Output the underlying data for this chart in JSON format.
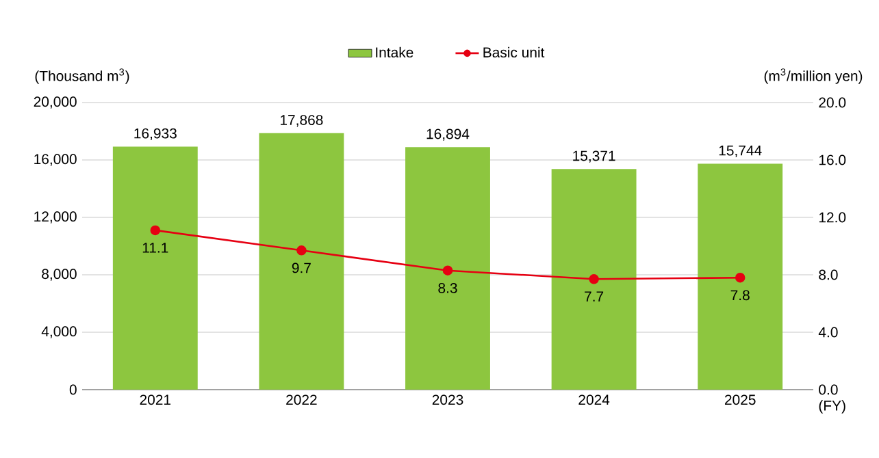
{
  "chart_data": {
    "type": "bar",
    "categories": [
      "2021",
      "2022",
      "2023",
      "2024",
      "2025"
    ],
    "ylabel": "(Thousand m$^{3}$)",
    "y2label": "(m$^{3}$/million yen)",
    "xlabel": "(FY)",
    "ylim": [
      0,
      20000
    ],
    "yticks": [
      {
        "value": 0,
        "label": "0"
      },
      {
        "value": 4000,
        "label": "4,000"
      },
      {
        "value": 8000,
        "label": "8,000"
      },
      {
        "value": 12000,
        "label": "12,000"
      },
      {
        "value": 16000,
        "label": "16,000"
      },
      {
        "value": 20000,
        "label": "20,000"
      }
    ],
    "y2lim": [
      0,
      20
    ],
    "y2ticks": [
      {
        "value": 0,
        "label": "0.0"
      },
      {
        "value": 4,
        "label": "4.0"
      },
      {
        "value": 8,
        "label": "8.0"
      },
      {
        "value": 12,
        "label": "12.0"
      },
      {
        "value": 16,
        "label": "16.0"
      },
      {
        "value": 20,
        "label": "20.0"
      }
    ],
    "grid": "y",
    "legend": "top",
    "series": [
      {
        "name": "Intake",
        "color": "#8dc63f",
        "values": [
          16933,
          17868,
          16894,
          15371,
          15744
        ],
        "value_labels": [
          "16,933",
          "17,868",
          "16,894",
          "15,371",
          "15,744"
        ]
      },
      {
        "name": "Basic unit",
        "type": "line",
        "axis": "y2",
        "color": "#e60012",
        "marker": "circle",
        "values": [
          11.1,
          9.7,
          8.3,
          7.7,
          7.8
        ],
        "value_labels": [
          "11.1",
          "9.7",
          "8.3",
          "7.7",
          "7.8"
        ]
      }
    ]
  }
}
